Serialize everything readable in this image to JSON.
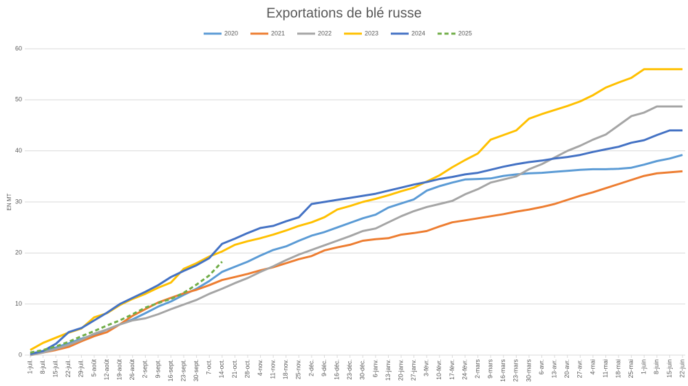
{
  "chart_data": {
    "type": "line",
    "title": "Exportations de blé russe",
    "y_label": "EN MT",
    "categories": [
      "1-juil.",
      "8-juil.",
      "15-juil.",
      "22-juil.",
      "29-juil.",
      "5-août",
      "12-août",
      "19-août",
      "26-août",
      "2-sept.",
      "9-sept.",
      "16-sept.",
      "23-sept.",
      "30-sept.",
      "7-oct.",
      "14-oct.",
      "21-oct.",
      "28-oct.",
      "4-nov.",
      "11-nov.",
      "18-nov.",
      "25-nov.",
      "2-déc.",
      "9-déc.",
      "16-déc.",
      "23-déc.",
      "30-déc.",
      "6-janv.",
      "13-janv.",
      "20-janv.",
      "27-janv.",
      "3-févr.",
      "10-févr.",
      "17-févr.",
      "24-févr.",
      "2-mars",
      "9-mars",
      "16-mars",
      "23-mars",
      "30-mars",
      "6-avr.",
      "13-avr.",
      "20-avr.",
      "27-avr.",
      "4-mai",
      "11-mai",
      "18-mai",
      "25-mai",
      "1-juin",
      "8-juin",
      "15-juin",
      "22-juin"
    ],
    "series": [
      {
        "name": "2020",
        "color": "#5b9bd5",
        "values": [
          0.3,
          0.8,
          1.5,
          2.3,
          3.2,
          4.0,
          5.0,
          6.0,
          7.0,
          8.2,
          9.5,
          10.5,
          11.8,
          13.0,
          14.5,
          16.3,
          17.3,
          18.3,
          19.5,
          20.6,
          21.3,
          22.4,
          23.4,
          24.1,
          25.0,
          25.9,
          26.8,
          27.5,
          28.9,
          29.7,
          30.5,
          32.2,
          33.1,
          33.8,
          34.4,
          34.5,
          34.6,
          35.1,
          35.4,
          35.6,
          35.7,
          35.9,
          36.1,
          36.3,
          36.4,
          36.4,
          36.5,
          36.7,
          37.3,
          38.0,
          38.5,
          39.2
        ]
      },
      {
        "name": "2021",
        "color": "#ed7d31",
        "values": [
          0,
          0.5,
          1.0,
          1.6,
          2.7,
          3.7,
          4.5,
          6.0,
          7.7,
          9.0,
          10.3,
          11.2,
          12.1,
          12.8,
          13.7,
          14.7,
          15.3,
          15.9,
          16.6,
          17.2,
          18.0,
          18.8,
          19.4,
          20.5,
          21.1,
          21.6,
          22.4,
          22.7,
          22.9,
          23.6,
          23.9,
          24.3,
          25.2,
          26.0,
          26.4,
          26.8,
          27.2,
          27.6,
          28.1,
          28.5,
          29.0,
          29.6,
          30.4,
          31.2,
          31.9,
          32.7,
          33.5,
          34.3,
          35.1,
          35.6,
          35.8,
          36.0
        ]
      },
      {
        "name": "2022",
        "color": "#a5a5a5",
        "values": [
          0,
          0.5,
          1.2,
          2.0,
          3.0,
          4.2,
          5.0,
          6.0,
          6.8,
          7.2,
          8.0,
          9.0,
          9.9,
          10.8,
          12.0,
          13.0,
          14.1,
          15.1,
          16.3,
          17.4,
          18.6,
          19.7,
          20.6,
          21.5,
          22.4,
          23.3,
          24.3,
          24.8,
          26.0,
          27.2,
          28.2,
          29.0,
          29.6,
          30.2,
          31.5,
          32.5,
          33.8,
          34.4,
          35.0,
          36.4,
          37.4,
          38.7,
          40.0,
          41.0,
          42.2,
          43.2,
          45.0,
          46.8,
          47.5,
          48.7,
          48.7,
          48.7
        ]
      },
      {
        "name": "2023",
        "color": "#ffc000",
        "values": [
          1.0,
          2.4,
          3.4,
          4.4,
          5.2,
          7.4,
          8.2,
          9.8,
          11.0,
          12.0,
          13.2,
          14.2,
          16.9,
          18.0,
          19.3,
          20.3,
          21.6,
          22.3,
          22.9,
          23.6,
          24.4,
          25.3,
          26.0,
          27.0,
          28.5,
          29.2,
          30.0,
          30.6,
          31.3,
          32.1,
          32.8,
          34.0,
          35.2,
          36.8,
          38.2,
          39.5,
          42.2,
          43.1,
          44.0,
          46.3,
          47.2,
          48.0,
          48.8,
          49.7,
          50.9,
          52.4,
          53.4,
          54.3,
          56.0,
          56.0,
          56.0,
          56.0
        ]
      },
      {
        "name": "2024",
        "color": "#4472c4",
        "values": [
          0.2,
          0.8,
          2.2,
          4.5,
          5.3,
          6.8,
          8.3,
          10.0,
          11.2,
          12.4,
          13.7,
          15.3,
          16.5,
          17.6,
          19.0,
          21.8,
          22.8,
          23.9,
          24.9,
          25.3,
          26.2,
          27.0,
          29.6,
          30.0,
          30.4,
          30.8,
          31.2,
          31.6,
          32.2,
          32.8,
          33.4,
          33.9,
          34.5,
          34.9,
          35.4,
          35.7,
          36.3,
          36.9,
          37.4,
          37.8,
          38.1,
          38.5,
          38.8,
          39.2,
          39.8,
          40.3,
          40.8,
          41.6,
          42.1,
          43.1,
          44.0,
          44.0
        ]
      },
      {
        "name": "2025",
        "color": "#70ad47",
        "dashed": true,
        "values": [
          0.5,
          1.0,
          1.7,
          2.6,
          3.7,
          4.7,
          5.8,
          6.8,
          8.0,
          9.3,
          10.2,
          11.0,
          12.2,
          13.8,
          15.6,
          18.3,
          null,
          null,
          null,
          null,
          null,
          null,
          null,
          null,
          null,
          null,
          null,
          null,
          null,
          null,
          null,
          null,
          null,
          null,
          null,
          null,
          null,
          null,
          null,
          null,
          null,
          null,
          null,
          null,
          null,
          null,
          null,
          null,
          null,
          null,
          null,
          null
        ]
      }
    ],
    "ylim": [
      0,
      60
    ],
    "yticks": [
      0,
      10,
      20,
      30,
      40,
      50,
      60
    ],
    "grid": true,
    "legend": "top"
  }
}
